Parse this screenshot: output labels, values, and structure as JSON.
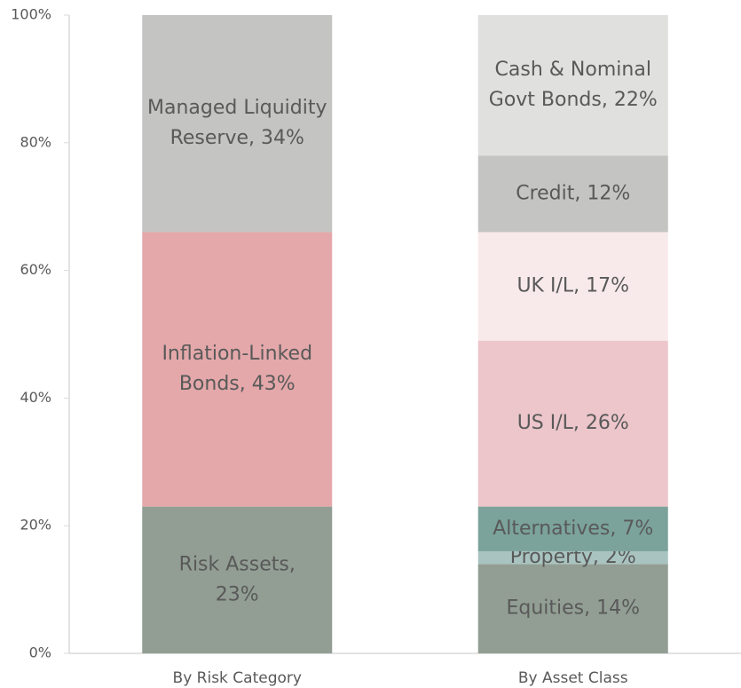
{
  "chart_data": {
    "type": "stacked-bar",
    "categories": [
      "By Risk Category",
      "By Asset Class"
    ],
    "ylim": [
      0,
      100
    ],
    "yticks": [
      {
        "value": 0,
        "label": "0%"
      },
      {
        "value": 20,
        "label": "20%"
      },
      {
        "value": 40,
        "label": "40%"
      },
      {
        "value": 60,
        "label": "60%"
      },
      {
        "value": 80,
        "label": "80%"
      },
      {
        "value": 100,
        "label": "100%"
      }
    ],
    "grid": false,
    "series": [
      {
        "color": "#929e94",
        "values": [
          23,
          null
        ],
        "value_labels": [
          [
            "Risk Assets,",
            "23%"
          ],
          null
        ]
      },
      {
        "color": "#e4a8aa",
        "values": [
          43,
          null
        ],
        "value_labels": [
          [
            "Inflation-Linked",
            "Bonds, 43%"
          ],
          null
        ]
      },
      {
        "color": "#c4c4c2",
        "values": [
          34,
          null
        ],
        "value_labels": [
          [
            "Managed Liquidity",
            "Reserve, 34%"
          ],
          null
        ]
      },
      {
        "color": "#929e94",
        "values": [
          null,
          14
        ],
        "value_labels": [
          null,
          [
            "Equities, 14%"
          ]
        ]
      },
      {
        "color": "#a9c4c0",
        "values": [
          null,
          2
        ],
        "value_labels": [
          null,
          [
            "Property, 2%"
          ]
        ]
      },
      {
        "color": "#7ba39c",
        "values": [
          null,
          7
        ],
        "value_labels": [
          null,
          [
            "Alternatives, 7%"
          ]
        ]
      },
      {
        "color": "#ecc6cb",
        "values": [
          null,
          26
        ],
        "value_labels": [
          null,
          [
            "US I/L, 26%"
          ]
        ]
      },
      {
        "color": "#f8eaea",
        "values": [
          null,
          17
        ],
        "value_labels": [
          null,
          [
            "UK I/L, 17%"
          ]
        ]
      },
      {
        "color": "#c4c4c2",
        "values": [
          null,
          12
        ],
        "value_labels": [
          null,
          [
            "Credit, 12%"
          ]
        ]
      },
      {
        "color": "#e0e0df",
        "values": [
          null,
          22
        ],
        "value_labels": [
          null,
          [
            "Cash & Nominal",
            "Govt Bonds, 22%"
          ]
        ]
      }
    ]
  }
}
